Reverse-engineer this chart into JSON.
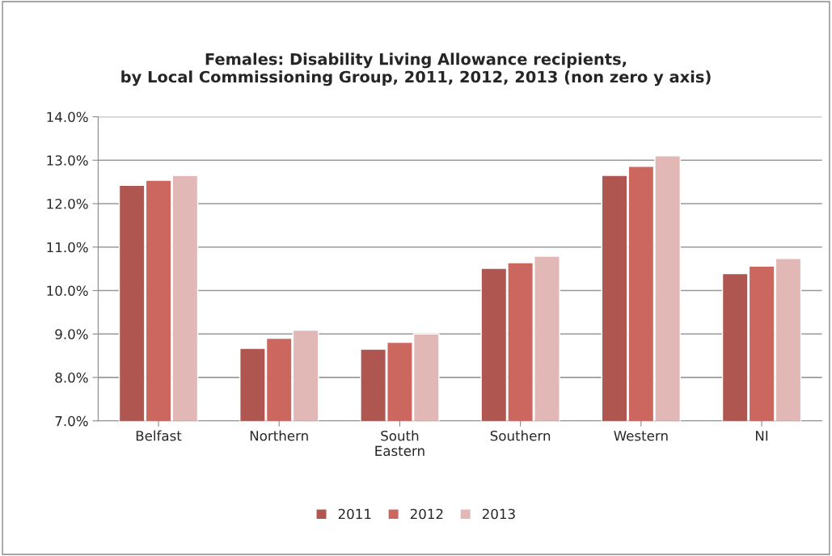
{
  "chart_data": {
    "type": "bar",
    "title": "Females: Disability Living Allowance recipients,\nby Local Commissioning Group, 2011, 2012, 2013 (non zero y axis)",
    "categories": [
      "Belfast",
      "Northern",
      "South\nEastern",
      "Southern",
      "Western",
      "NI"
    ],
    "series": [
      {
        "name": "2011",
        "color": "#ae564f",
        "values": [
          12.42,
          8.67,
          8.65,
          10.51,
          12.65,
          10.39
        ]
      },
      {
        "name": "2012",
        "color": "#cc6760",
        "values": [
          12.54,
          8.9,
          8.81,
          10.64,
          12.86,
          10.56
        ]
      },
      {
        "name": "2013",
        "color": "#e1b8b6",
        "values": [
          12.65,
          9.09,
          9.0,
          10.79,
          13.1,
          10.74
        ]
      }
    ],
    "ylim": [
      7,
      14
    ],
    "yticks": [
      {
        "value": 7,
        "label": "7.0%"
      },
      {
        "value": 8,
        "label": "8.0%"
      },
      {
        "value": 9,
        "label": "9.0%"
      },
      {
        "value": 10,
        "label": "10.0%"
      },
      {
        "value": 11,
        "label": "11.0%"
      },
      {
        "value": 12,
        "label": "12.0%"
      },
      {
        "value": 13,
        "label": "13.0%"
      },
      {
        "value": 14,
        "label": "14.0%"
      }
    ],
    "grid": "y",
    "legend": "bottom"
  }
}
